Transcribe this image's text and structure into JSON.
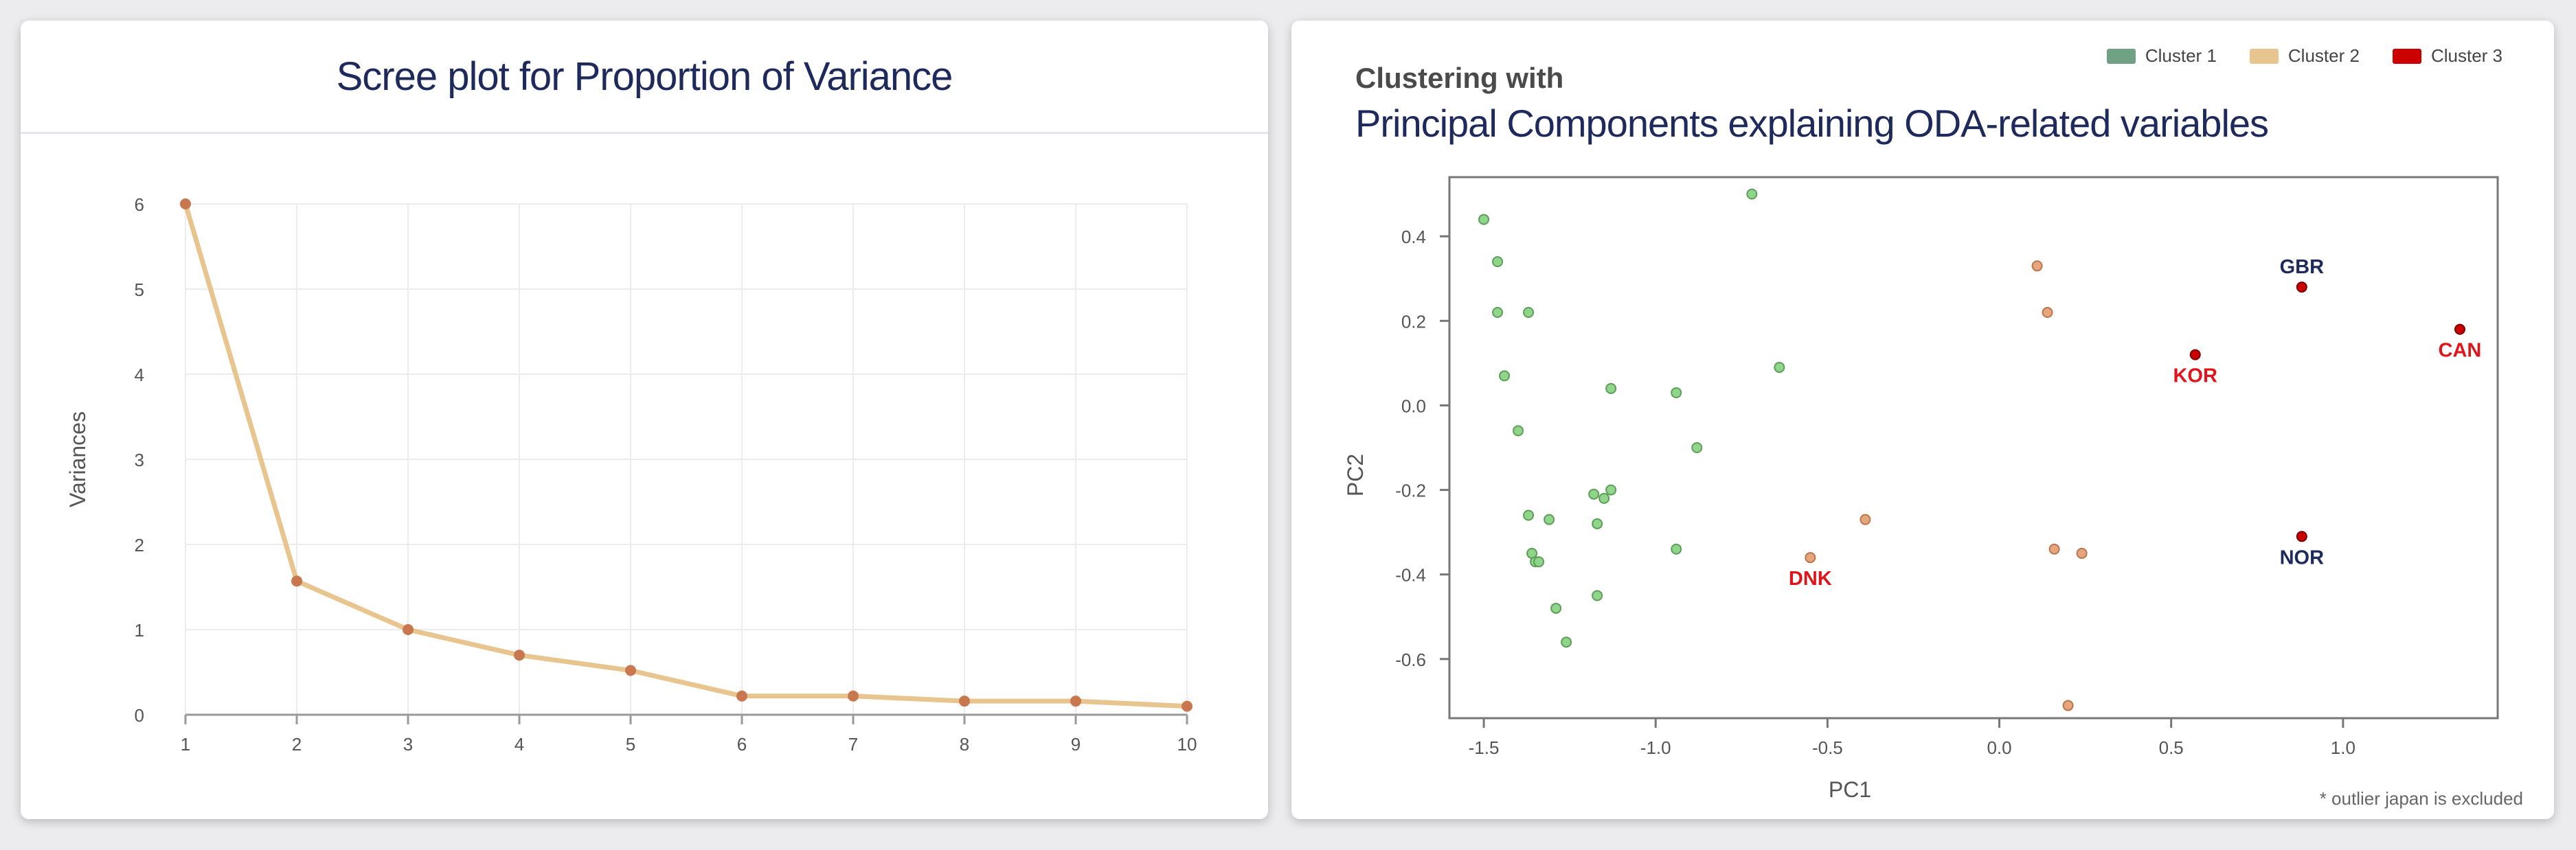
{
  "colors": {
    "scree_line": "#e8c48e",
    "scree_point": "#c9774f",
    "cluster1": "#6fa285",
    "cluster1_point": "#8fd58a",
    "cluster2": "#e8c48e",
    "cluster2_point": "#e8a47a",
    "cluster3": "#cc0000",
    "label_red": "#e0141b",
    "label_navy": "#1e2a5c"
  },
  "chart_data": [
    {
      "type": "line",
      "title": "Scree plot for Proportion of Variance",
      "xlabel": "",
      "ylabel": "Variances",
      "x": [
        1,
        2,
        3,
        4,
        5,
        6,
        7,
        8,
        9,
        10
      ],
      "values": [
        6.0,
        1.57,
        1.0,
        0.7,
        0.52,
        0.22,
        0.22,
        0.16,
        0.16,
        0.1
      ],
      "xlim": [
        1,
        10
      ],
      "ylim": [
        0,
        6
      ],
      "xticks": [
        1,
        2,
        3,
        4,
        5,
        6,
        7,
        8,
        9,
        10
      ],
      "yticks": [
        0,
        1,
        2,
        3,
        4,
        5,
        6
      ],
      "grid": true
    },
    {
      "type": "scatter",
      "subtitle": "Clustering with",
      "title": "Principal Components explaining ODA-related variables",
      "xlabel": "PC1",
      "ylabel": "PC2",
      "xlim": [
        -1.6,
        1.45
      ],
      "ylim": [
        -0.74,
        0.54
      ],
      "xticks": [
        "-1.5",
        "-1.0",
        "-0.5",
        "0.0",
        "0.5",
        "1.0"
      ],
      "yticks": [
        "0.4",
        "0.2",
        "0.0",
        "-0.2",
        "-0.4",
        "-0.6"
      ],
      "grid": false,
      "legend_position": "top-right",
      "footnote": "* outlier japan is excluded",
      "series": [
        {
          "name": "Cluster 1",
          "points": [
            [
              -1.5,
              0.44
            ],
            [
              -1.46,
              0.34
            ],
            [
              -1.46,
              0.22
            ],
            [
              -1.44,
              0.07
            ],
            [
              -1.37,
              0.22
            ],
            [
              -1.4,
              -0.06
            ],
            [
              -1.37,
              -0.26
            ],
            [
              -1.31,
              -0.27
            ],
            [
              -1.36,
              -0.35
            ],
            [
              -1.35,
              -0.37
            ],
            [
              -1.34,
              -0.37
            ],
            [
              -1.29,
              -0.48
            ],
            [
              -1.26,
              -0.56
            ],
            [
              -1.18,
              -0.21
            ],
            [
              -1.17,
              -0.28
            ],
            [
              -1.15,
              -0.22
            ],
            [
              -1.13,
              -0.2
            ],
            [
              -1.17,
              -0.45
            ],
            [
              -1.13,
              0.04
            ],
            [
              -0.94,
              0.03
            ],
            [
              -0.94,
              -0.34
            ],
            [
              -0.88,
              -0.1
            ],
            [
              -0.72,
              0.5
            ],
            [
              -0.64,
              0.09
            ]
          ],
          "labels": []
        },
        {
          "name": "Cluster 2",
          "points": [
            [
              0.11,
              0.33
            ],
            [
              0.14,
              0.22
            ],
            [
              0.16,
              -0.34
            ],
            [
              0.24,
              -0.35
            ],
            [
              0.2,
              -0.71
            ],
            [
              -0.39,
              -0.27
            ],
            [
              -0.55,
              -0.36
            ]
          ],
          "labels": [
            {
              "index": 6,
              "text": "DNK",
              "color": "red"
            }
          ]
        },
        {
          "name": "Cluster 3",
          "points": [
            [
              0.57,
              0.12
            ],
            [
              0.88,
              0.28
            ],
            [
              0.88,
              -0.31
            ],
            [
              1.34,
              0.18
            ]
          ],
          "labels": [
            {
              "index": 0,
              "text": "KOR",
              "color": "red"
            },
            {
              "index": 1,
              "text": "GBR",
              "color": "navy"
            },
            {
              "index": 2,
              "text": "NOR",
              "color": "navy"
            },
            {
              "index": 3,
              "text": "CAN",
              "color": "red"
            }
          ]
        }
      ]
    }
  ]
}
